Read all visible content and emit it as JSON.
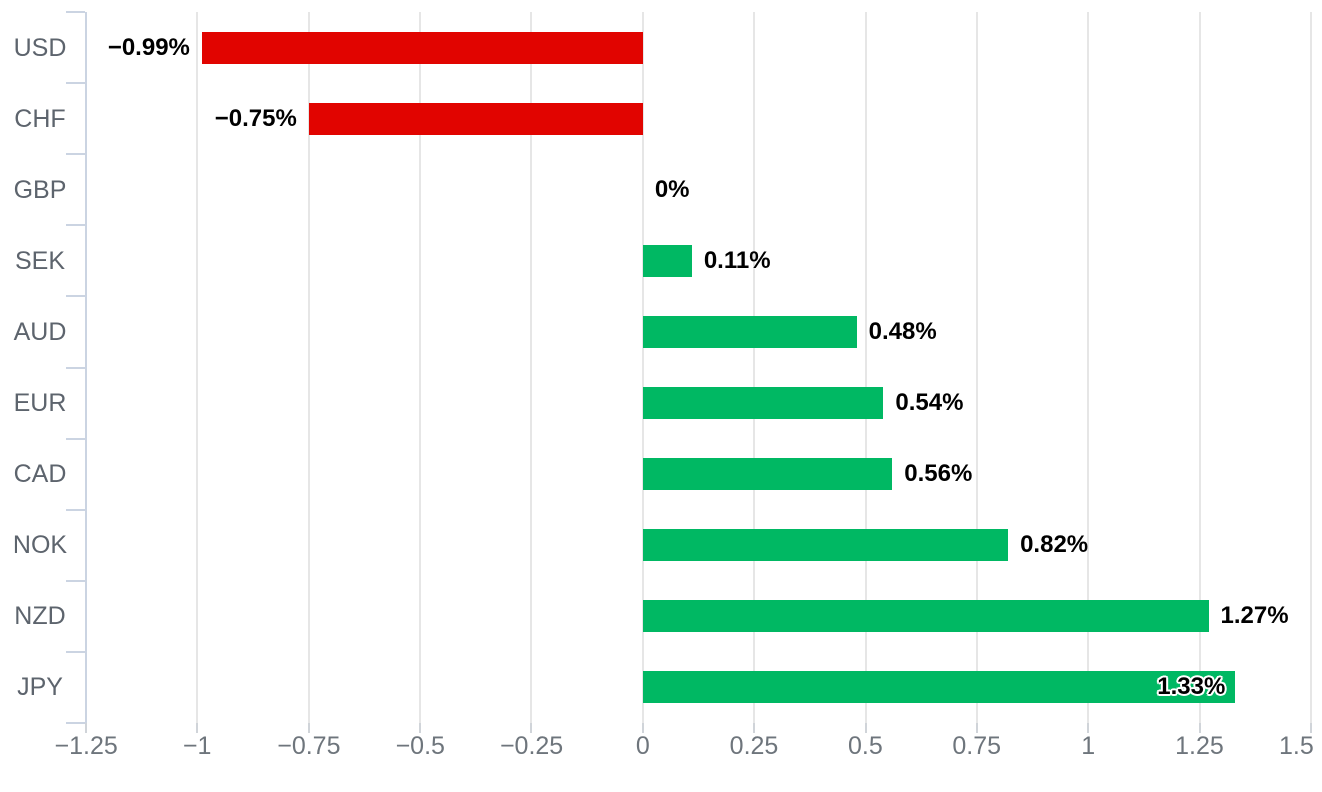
{
  "chart_data": {
    "type": "bar",
    "orientation": "horizontal",
    "title": "",
    "xlabel": "",
    "ylabel": "",
    "legend": false,
    "grid": true,
    "categories": [
      "USD",
      "CHF",
      "GBP",
      "SEK",
      "AUD",
      "EUR",
      "CAD",
      "NOK",
      "NZD",
      "JPY"
    ],
    "values": [
      -0.99,
      -0.75,
      0,
      0.11,
      0.48,
      0.54,
      0.56,
      0.82,
      1.27,
      1.33
    ],
    "value_labels": [
      "−0.99%",
      "−0.75%",
      "0%",
      "0.11%",
      "0.48%",
      "0.54%",
      "0.56%",
      "0.82%",
      "1.27%",
      "1.33%"
    ],
    "x_ticks": [
      -1.25,
      -1,
      -0.75,
      -0.5,
      -0.25,
      0,
      0.25,
      0.5,
      0.75,
      1,
      1.25,
      1.5
    ],
    "x_tick_labels": [
      "−1.25",
      "−1",
      "−0.75",
      "−0.5",
      "−0.25",
      "0",
      "0.25",
      "0.5",
      "0.75",
      "1",
      "1.25",
      "1.5"
    ],
    "xlim": [
      -1.25,
      1.5
    ],
    "colors": {
      "positive": "#00b863",
      "negative": "#e10400",
      "grid": "#e6e6e6",
      "category_axis": "#cbd4e2",
      "bottom_tick": "#d0d4d9",
      "tick_label": "#6e757c",
      "category_label": "#5d646d",
      "value_label": "#000000",
      "background": "#ffffff"
    }
  }
}
